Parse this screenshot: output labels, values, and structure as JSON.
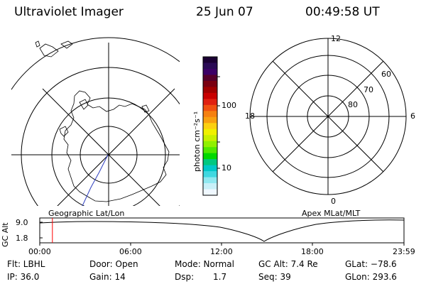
{
  "header": {
    "title": "Ultraviolet Imager",
    "date": "25 Jun 07",
    "time": "00:49:58 UT"
  },
  "left_map": {
    "label": "Geographic Lat/Lon"
  },
  "colorbar": {
    "unit_label": "photon cm⁻²s⁻¹",
    "ticks": [
      "100",
      "10"
    ],
    "colors": [
      "#1a0033",
      "#2a0a55",
      "#3c0066",
      "#55002b",
      "#7a0011",
      "#a00000",
      "#c80000",
      "#e02010",
      "#f05010",
      "#f58010",
      "#f8a010",
      "#fcd010",
      "#f0f000",
      "#c8f000",
      "#90f000",
      "#50e800",
      "#00d800",
      "#00c880",
      "#00c8c8",
      "#40d8e0",
      "#90e8f0",
      "#c8f0f8",
      "#f0f8ff"
    ]
  },
  "right_map": {
    "label": "Apex MLat/MLT",
    "mlt_labels": {
      "top": "12",
      "bottom": "0",
      "left": "18",
      "right": "6"
    },
    "lat_labels": [
      "60",
      "70",
      "80"
    ]
  },
  "timeline": {
    "ylabel": "GC Alt",
    "yticks": [
      "9.0",
      "1.8"
    ],
    "xticks": [
      "00:00",
      "06:00",
      "12:00",
      "18:00",
      "23:59"
    ],
    "marker_time_fraction": 0.0347,
    "marker_color": "#ff0000"
  },
  "info": {
    "flt": "Flt: LBHL",
    "door": "Door: Open",
    "mode": "Mode: Normal",
    "gc_alt": "GC Alt: 7.4 Re",
    "glat": "GLat: −78.6",
    "ip": "IP: 36.0",
    "gain": "Gain: 14",
    "dsp_label": "Dsp:",
    "dsp_value": "1.7",
    "seq": "Seq: 39",
    "glon": "GLon: 293.6"
  }
}
